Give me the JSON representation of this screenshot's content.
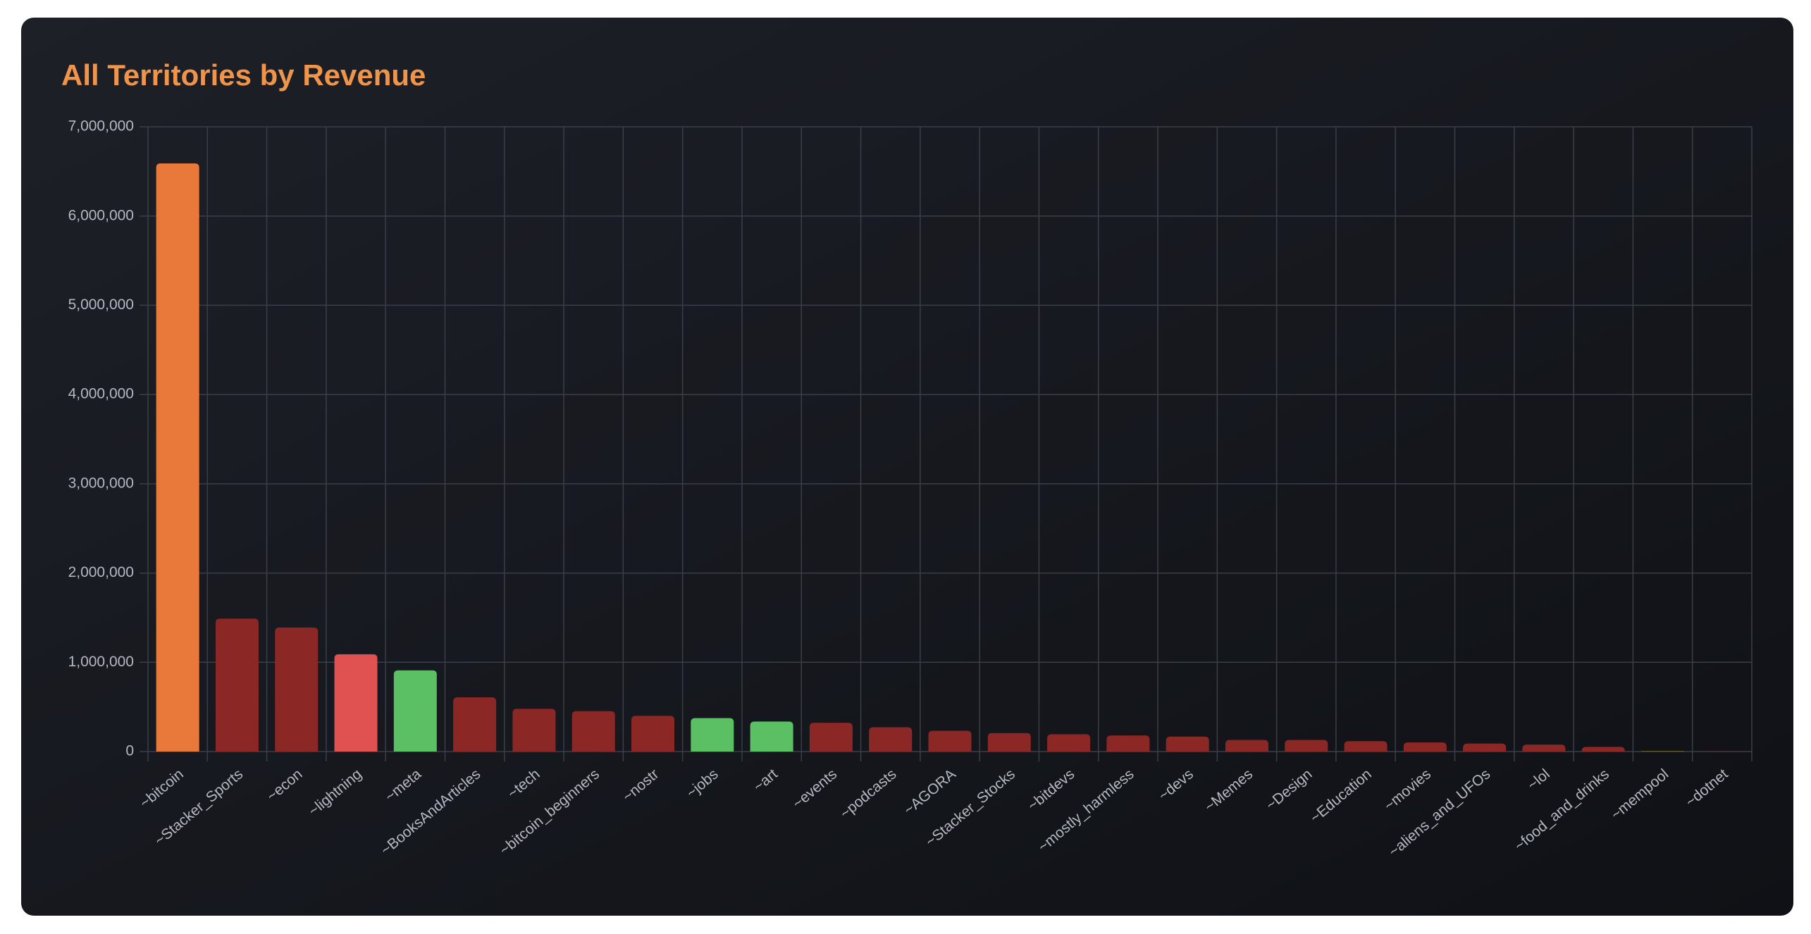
{
  "chart_data": {
    "type": "bar",
    "title": "All Territories by Revenue",
    "categories": [
      "~bitcoin",
      "~Stacker_Sports",
      "~econ",
      "~lightning",
      "~meta",
      "~BooksAndArticles",
      "~tech",
      "~bitcoin_beginners",
      "~nostr",
      "~jobs",
      "~art",
      "~events",
      "~podcasts",
      "~AGORA",
      "~Stacker_Stocks",
      "~bitdevs",
      "~mostly_harmless",
      "~devs",
      "~Memes",
      "~Design",
      "~Education",
      "~movies",
      "~aliens_and_UFOs",
      "~lol",
      "~food_and_drinks",
      "~mempool",
      "~dotnet"
    ],
    "values": [
      6590000,
      1490000,
      1390000,
      1090000,
      910000,
      608000,
      479000,
      453000,
      401000,
      375000,
      336000,
      323000,
      272000,
      233000,
      207000,
      194000,
      181000,
      168000,
      130000,
      130000,
      116000,
      103000,
      90000,
      78000,
      52000,
      5000,
      2000
    ],
    "colors": [
      "#e8793a",
      "#8b2826",
      "#8b2826",
      "#e05252",
      "#5bbf63",
      "#8b2826",
      "#8b2826",
      "#8b2826",
      "#8b2826",
      "#5bbf63",
      "#5bbf63",
      "#8b2826",
      "#8b2826",
      "#8b2826",
      "#8b2826",
      "#8b2826",
      "#8b2826",
      "#8b2826",
      "#8b2826",
      "#8b2826",
      "#8b2826",
      "#8b2826",
      "#8b2826",
      "#8b2826",
      "#8b2826",
      "#8a7a2a",
      "#8b2826"
    ],
    "ylim": [
      0,
      7000000
    ],
    "yticks": [
      0,
      {
        "value": 1000000,
        "label": "1,000,000"
      },
      {
        "value": 2000000,
        "label": "2,000,000"
      },
      {
        "value": 3000000,
        "label": "3,000,000"
      },
      {
        "value": 4000000,
        "label": "4,000,000"
      },
      {
        "value": 5000000,
        "label": "5,000,000"
      },
      {
        "value": 6000000,
        "label": "6,000,000"
      },
      {
        "value": 7000000,
        "label": "7,000,000"
      }
    ],
    "grid": true
  }
}
